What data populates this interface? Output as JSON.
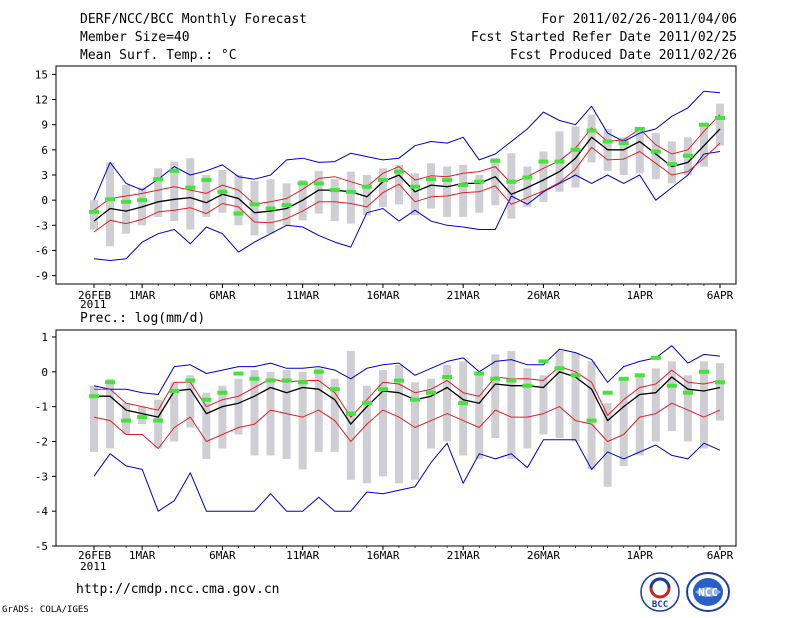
{
  "header": {
    "title": "DERF/NCC/BCC Monthly Forecast",
    "member_size": "Member Size=40",
    "variable": "Mean Surf. Temp.: °C",
    "period": "For 2011/02/26-2011/04/06",
    "started": "Fcst Started Refer Date 2011/02/25",
    "produced": "Fcst Produced Date 2011/02/26"
  },
  "footer": {
    "url": "http://cmdp.ncc.cma.gov.cn",
    "grads": "GrADS: COLA/IGES",
    "logo_bcc": "BCC",
    "logo_ncc": "NCC"
  },
  "colors": {
    "mean": "#000000",
    "spread": "#e0202a",
    "extreme": "#0000cc",
    "box": "#cfcfd3",
    "median": "#44e23c"
  },
  "x_labels": [
    "26FEB",
    "1MAR",
    "6MAR",
    "11MAR",
    "16MAR",
    "21MAR",
    "26MAR",
    "1APR",
    "6APR"
  ],
  "x_label_days": [
    0,
    3,
    8,
    13,
    18,
    23,
    28,
    34,
    39
  ],
  "x_year": "2011",
  "chart_data": [
    {
      "type": "line",
      "title": "Mean Surf. Temp.: °C",
      "ylim": [
        -10,
        16
      ],
      "yticks": [
        -9,
        -6,
        -3,
        0,
        3,
        6,
        9,
        12,
        15
      ],
      "x_days": 40,
      "series": [
        {
          "name": "ensemble mean",
          "values": [
            -2.5,
            -1.0,
            -1.3,
            -0.8,
            -0.2,
            0.1,
            0.3,
            -0.3,
            0.7,
            0.2,
            -1.5,
            -1.3,
            -1.0,
            0.0,
            1.2,
            1.2,
            1.0,
            0.4,
            2.2,
            3.0,
            1.0,
            1.8,
            1.6,
            2.0,
            2.0,
            2.8,
            0.7,
            1.5,
            2.4,
            3.4,
            5.0,
            7.5,
            6.0,
            6.0,
            7.0,
            5.5,
            4.0,
            4.5,
            6.5,
            8.5
          ]
        },
        {
          "name": "upper spread",
          "values": [
            -1.2,
            0.2,
            0.5,
            0.8,
            1.2,
            1.6,
            1.2,
            0.8,
            1.8,
            1.2,
            -0.5,
            -0.2,
            0.2,
            1.3,
            2.6,
            2.8,
            2.2,
            1.6,
            3.2,
            4.0,
            2.4,
            2.9,
            2.8,
            3.2,
            3.4,
            4.0,
            2.0,
            2.8,
            3.8,
            4.7,
            6.2,
            8.6,
            7.0,
            7.2,
            8.5,
            6.6,
            5.5,
            6.0,
            8.2,
            10.2
          ]
        },
        {
          "name": "lower spread",
          "values": [
            -3.8,
            -2.4,
            -2.8,
            -2.3,
            -1.4,
            -1.2,
            -0.9,
            -1.6,
            -0.4,
            -0.8,
            -2.6,
            -2.7,
            -2.2,
            -1.3,
            -0.2,
            -0.2,
            -0.4,
            -0.8,
            0.9,
            1.9,
            -0.2,
            0.4,
            0.5,
            0.9,
            1.0,
            1.7,
            -0.5,
            0.3,
            1.1,
            2.1,
            3.7,
            6.3,
            4.8,
            4.9,
            5.8,
            4.4,
            3.0,
            3.4,
            5.0,
            6.8
          ]
        },
        {
          "name": "max",
          "values": [
            0.0,
            4.5,
            2.0,
            1.2,
            2.5,
            4.0,
            3.0,
            3.5,
            4.2,
            2.8,
            2.5,
            3.0,
            4.8,
            5.0,
            4.5,
            4.6,
            5.6,
            5.2,
            4.8,
            5.0,
            6.5,
            7.0,
            6.8,
            7.5,
            4.8,
            5.5,
            7.0,
            8.5,
            10.5,
            9.5,
            9.0,
            11.2,
            8.0,
            7.0,
            8.0,
            8.5,
            10.0,
            11.0,
            13.0,
            12.8
          ]
        },
        {
          "name": "min",
          "values": [
            -7.0,
            -7.2,
            -7.0,
            -5.0,
            -4.0,
            -3.5,
            -5.2,
            -3.2,
            -4.0,
            -6.2,
            -5.0,
            -4.0,
            -3.0,
            -3.2,
            -4.2,
            -5.0,
            -5.6,
            -1.5,
            -1.0,
            -2.5,
            -1.2,
            -2.5,
            -3.0,
            -3.2,
            -3.5,
            -3.5,
            0.5,
            -0.5,
            1.0,
            2.0,
            3.0,
            2.0,
            3.0,
            2.0,
            3.0,
            0.0,
            1.5,
            3.0,
            5.5,
            5.8
          ]
        },
        {
          "name": "box top",
          "values": [
            0.0,
            4.5,
            1.8,
            1.5,
            3.8,
            4.6,
            5.0,
            3.0,
            3.6,
            3.0,
            2.3,
            2.5,
            2.0,
            2.4,
            3.5,
            2.5,
            3.4,
            3.0,
            3.8,
            4.2,
            3.2,
            4.4,
            4.0,
            4.2,
            3.0,
            5.0,
            5.6,
            4.0,
            5.8,
            8.2,
            8.8,
            10.2,
            8.5,
            7.5,
            8.4,
            8.0,
            7.0,
            7.5,
            9.0,
            11.5
          ]
        },
        {
          "name": "box bottom",
          "values": [
            -3.5,
            -5.5,
            -4.0,
            -3.0,
            -2.0,
            -2.5,
            -3.5,
            -2.0,
            -1.5,
            -3.0,
            -4.2,
            -4.0,
            -3.0,
            -2.4,
            -1.6,
            -2.5,
            -2.8,
            -1.8,
            -0.8,
            -0.5,
            -1.8,
            -1.0,
            -2.0,
            -2.0,
            -1.5,
            -0.6,
            -2.2,
            -0.8,
            -0.2,
            1.0,
            1.5,
            4.5,
            3.5,
            3.0,
            3.2,
            2.5,
            2.0,
            3.0,
            4.0,
            6.5
          ]
        },
        {
          "name": "median",
          "values": [
            -1.4,
            0.1,
            -0.2,
            0.0,
            2.5,
            3.5,
            1.5,
            2.4,
            1.0,
            -1.6,
            -0.5,
            -1.0,
            -0.6,
            2.0,
            2.0,
            1.2,
            1.0,
            1.6,
            2.4,
            3.4,
            1.6,
            2.5,
            2.4,
            1.8,
            2.2,
            4.7,
            2.2,
            2.7,
            4.6,
            4.6,
            6.0,
            8.3,
            7.0,
            6.8,
            8.5,
            5.8,
            4.3,
            5.3,
            9.0,
            9.8
          ]
        }
      ]
    },
    {
      "type": "line",
      "title": "Prec.: log(mm/d)",
      "ylim": [
        -5,
        1.2
      ],
      "yticks": [
        -5,
        -4,
        -3,
        -2,
        -1,
        0,
        1
      ],
      "x_days": 40,
      "series": [
        {
          "name": "ensemble mean",
          "values": [
            -0.7,
            -0.7,
            -1.1,
            -1.2,
            -1.3,
            -0.55,
            -0.5,
            -1.2,
            -1.0,
            -0.9,
            -0.7,
            -0.45,
            -0.6,
            -0.45,
            -0.5,
            -0.8,
            -1.5,
            -1.0,
            -0.55,
            -0.6,
            -0.8,
            -0.7,
            -0.45,
            -0.8,
            -0.9,
            -0.35,
            -0.4,
            -0.4,
            -0.45,
            0.0,
            -0.15,
            -0.5,
            -1.4,
            -1.0,
            -0.65,
            -0.6,
            -0.15,
            -0.5,
            -0.55,
            -0.45
          ]
        },
        {
          "name": "upper spread",
          "values": [
            -0.5,
            -0.5,
            -0.9,
            -1.0,
            -1.1,
            -0.3,
            -0.3,
            -1.0,
            -0.8,
            -0.7,
            -0.45,
            -0.2,
            -0.3,
            -0.25,
            -0.25,
            -0.6,
            -1.3,
            -0.8,
            -0.3,
            -0.35,
            -0.6,
            -0.5,
            -0.25,
            -0.6,
            -0.7,
            -0.15,
            -0.2,
            -0.2,
            -0.25,
            0.15,
            0.0,
            -0.3,
            -1.25,
            -0.8,
            -0.45,
            -0.35,
            0.05,
            -0.3,
            -0.35,
            -0.25
          ]
        },
        {
          "name": "lower spread",
          "values": [
            -1.3,
            -1.4,
            -1.8,
            -1.8,
            -2.2,
            -1.6,
            -1.3,
            -2.0,
            -1.8,
            -1.6,
            -1.5,
            -1.1,
            -1.2,
            -1.3,
            -1.1,
            -1.4,
            -2.0,
            -1.5,
            -1.1,
            -1.3,
            -1.6,
            -1.4,
            -1.2,
            -1.4,
            -1.6,
            -1.1,
            -1.3,
            -1.3,
            -1.2,
            -1.0,
            -1.4,
            -1.5,
            -2.0,
            -1.8,
            -1.3,
            -1.2,
            -0.9,
            -1.1,
            -1.3,
            -1.1
          ]
        },
        {
          "name": "max",
          "values": [
            -0.4,
            -0.5,
            -0.5,
            -0.6,
            -0.65,
            0.15,
            0.2,
            -0.05,
            0.05,
            0.15,
            0.15,
            0.25,
            0.1,
            0.1,
            0.15,
            0.05,
            -0.2,
            0.1,
            0.2,
            0.25,
            -0.1,
            0.1,
            0.3,
            0.4,
            0.0,
            0.3,
            0.35,
            0.2,
            0.2,
            0.65,
            0.55,
            0.35,
            -0.3,
            0.15,
            0.3,
            0.4,
            0.75,
            0.25,
            0.5,
            0.45
          ]
        },
        {
          "name": "min",
          "values": [
            -3.0,
            -2.35,
            -2.7,
            -2.8,
            -4.0,
            -3.7,
            -2.9,
            -4.0,
            -4.0,
            -4.0,
            -4.0,
            -3.5,
            -4.0,
            -4.0,
            -3.6,
            -4.0,
            -4.0,
            -3.45,
            -3.5,
            -3.4,
            -3.3,
            -2.6,
            -2.05,
            -3.2,
            -2.35,
            -2.5,
            -2.35,
            -2.75,
            -1.95,
            -1.95,
            -1.95,
            -2.8,
            -2.3,
            -2.5,
            -2.3,
            -2.1,
            -2.4,
            -2.5,
            -2.05,
            -2.25
          ]
        },
        {
          "name": "box top",
          "values": [
            -0.4,
            -0.2,
            -0.9,
            -1.0,
            -0.8,
            -0.3,
            -0.1,
            -0.6,
            -0.4,
            -0.2,
            0.05,
            0.0,
            0.05,
            0.0,
            0.1,
            -0.2,
            0.6,
            -0.4,
            0.05,
            0.2,
            -0.3,
            -0.2,
            0.2,
            0.3,
            -0.1,
            0.5,
            0.6,
            0.1,
            -0.1,
            0.6,
            0.55,
            0.3,
            -0.9,
            -0.2,
            -0.1,
            0.1,
            0.3,
            -0.1,
            0.3,
            0.25
          ]
        },
        {
          "name": "box bottom",
          "values": [
            -2.3,
            -2.2,
            -1.8,
            -1.5,
            -2.2,
            -2.0,
            -1.6,
            -2.5,
            -2.2,
            -1.8,
            -2.4,
            -2.4,
            -2.5,
            -2.8,
            -2.3,
            -2.3,
            -3.1,
            -3.2,
            -3.0,
            -3.2,
            -3.1,
            -2.2,
            -2.0,
            -2.4,
            -2.5,
            -1.9,
            -2.5,
            -2.2,
            -1.8,
            -1.9,
            -2.0,
            -2.8,
            -3.3,
            -2.7,
            -2.4,
            -2.0,
            -1.7,
            -2.0,
            -2.2,
            -1.4
          ]
        },
        {
          "name": "median",
          "values": [
            -0.7,
            -0.3,
            -1.4,
            -1.3,
            -1.4,
            -0.55,
            -0.25,
            -0.8,
            -0.6,
            -0.05,
            -0.2,
            -0.25,
            -0.25,
            -0.3,
            0.0,
            -0.5,
            -1.2,
            -0.9,
            -0.5,
            -0.25,
            -0.8,
            -0.6,
            -0.15,
            -0.9,
            -0.05,
            -0.2,
            -0.25,
            -0.4,
            0.3,
            0.1,
            -0.1,
            -1.4,
            -0.6,
            -0.2,
            -0.1,
            0.4,
            -0.4,
            -0.6,
            0.0,
            -0.3
          ]
        }
      ]
    }
  ]
}
